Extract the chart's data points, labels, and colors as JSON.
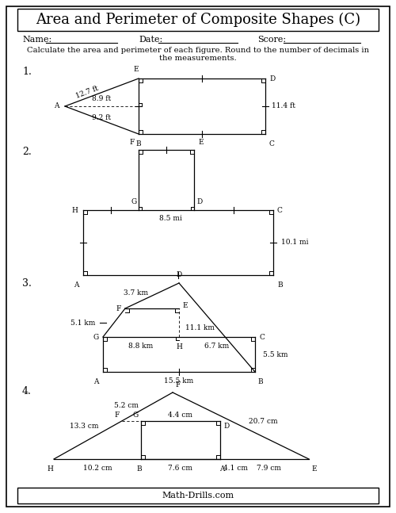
{
  "title": "Area and Perimeter of Composite Shapes (C)",
  "footer": "Math-Drills.com",
  "name_label": "Name:",
  "date_label": "Date:",
  "score_label": "Score:",
  "instruction": "Calculate the area and perimeter of each figure. Round to the number of decimals in\nthe measurements."
}
